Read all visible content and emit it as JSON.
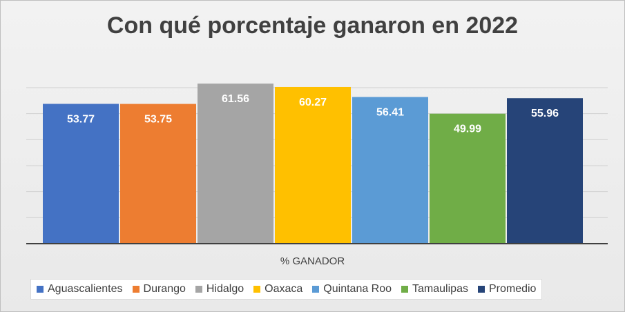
{
  "chart_data": {
    "type": "bar",
    "title": "Con qué porcentaje ganaron en 2022",
    "categories": [
      "% GANADOR"
    ],
    "series": [
      {
        "name": "Aguascalientes",
        "value": 53.77,
        "label": "53.77",
        "color": "#4472c4"
      },
      {
        "name": "Durango",
        "value": 53.75,
        "label": "53.75",
        "color": "#ed7d31"
      },
      {
        "name": "Hidalgo",
        "value": 61.56,
        "label": "61.56",
        "color": "#a5a5a5"
      },
      {
        "name": "Oaxaca",
        "value": 60.27,
        "label": "60.27",
        "color": "#ffc000"
      },
      {
        "name": "Quintana Roo",
        "value": 56.41,
        "label": "56.41",
        "color": "#5b9bd5"
      },
      {
        "name": "Tamaulipas",
        "value": 49.99,
        "label": "49.99",
        "color": "#70ad47"
      },
      {
        "name": "Promedio",
        "value": 55.96,
        "label": "55.96",
        "color": "#264478"
      }
    ],
    "ylim": [
      0,
      60
    ],
    "grid": true,
    "legend": "bottom"
  }
}
